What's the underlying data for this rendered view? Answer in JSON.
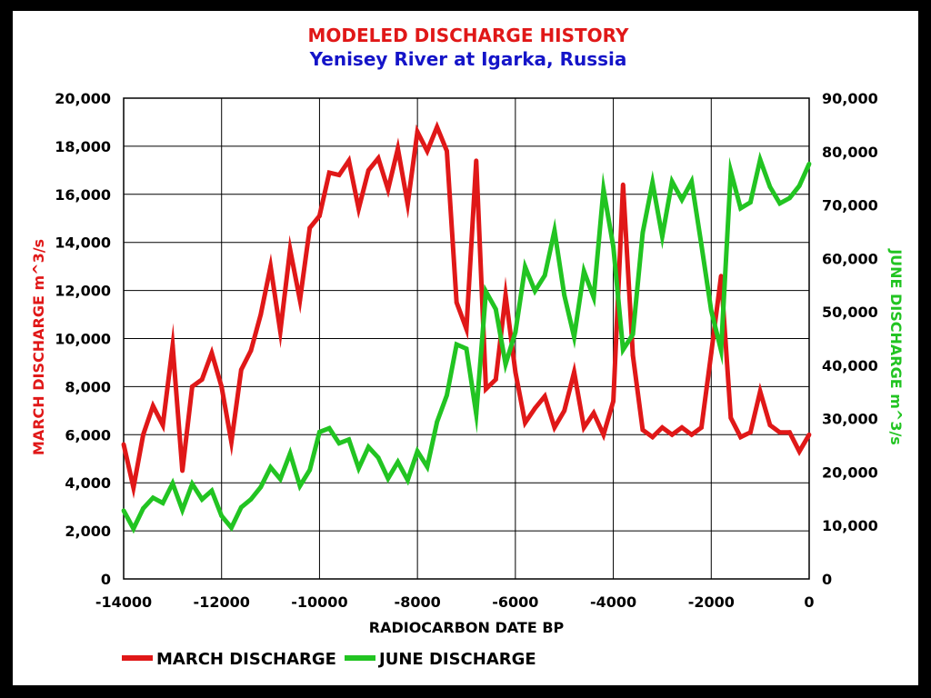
{
  "chart_data": {
    "type": "line",
    "title": "MODELED DISCHARGE HISTORY",
    "subtitle": "Yenisey River at Igarka, Russia",
    "xlabel": "RADIOCARBON DATE BP",
    "ylabel_left": "MARCH DISCHARGE m^3/s",
    "ylabel_right": "JUNE DISCHARGE m^3/s",
    "xlim": [
      -14000,
      0
    ],
    "ylim_left": [
      0,
      20000
    ],
    "ylim_right": [
      0,
      90000
    ],
    "x_ticks": [
      -14000,
      -12000,
      -10000,
      -8000,
      -6000,
      -4000,
      -2000,
      0
    ],
    "x_tick_labels": [
      "-14000",
      "-12000",
      "-10000",
      "-8000",
      "-6000",
      "-4000",
      "-2000",
      "0"
    ],
    "yleft_ticks": [
      0,
      2000,
      4000,
      6000,
      8000,
      10000,
      12000,
      14000,
      16000,
      18000,
      20000
    ],
    "yleft_tick_labels": [
      "0",
      "2,000",
      "4,000",
      "6,000",
      "8,000",
      "10,000",
      "12,000",
      "14,000",
      "16,000",
      "18,000",
      "20,000"
    ],
    "yright_ticks": [
      0,
      10000,
      20000,
      30000,
      40000,
      50000,
      60000,
      70000,
      80000,
      90000
    ],
    "yright_tick_labels": [
      "0",
      "10,000",
      "20,000",
      "30,000",
      "40,000",
      "50,000",
      "60,000",
      "70,000",
      "80,000",
      "90,000"
    ],
    "grid": true,
    "legend_position": "bottom",
    "series": [
      {
        "name": "MARCH DISCHARGE",
        "axis": "left",
        "color": "#e01818",
        "points": [
          [
            -14000,
            5600
          ],
          [
            -13800,
            3800
          ],
          [
            -13600,
            6000
          ],
          [
            -13400,
            7200
          ],
          [
            -13200,
            6400
          ],
          [
            -13000,
            9700
          ],
          [
            -12800,
            4500
          ],
          [
            -12600,
            8000
          ],
          [
            -12400,
            8300
          ],
          [
            -12200,
            9400
          ],
          [
            -12000,
            8000
          ],
          [
            -11800,
            5700
          ],
          [
            -11600,
            8700
          ],
          [
            -11400,
            9500
          ],
          [
            -11200,
            11000
          ],
          [
            -11000,
            13000
          ],
          [
            -10800,
            10300
          ],
          [
            -10600,
            13700
          ],
          [
            -10400,
            11600
          ],
          [
            -10200,
            14600
          ],
          [
            -10000,
            15100
          ],
          [
            -9800,
            16900
          ],
          [
            -9600,
            16800
          ],
          [
            -9400,
            17400
          ],
          [
            -9200,
            15400
          ],
          [
            -9000,
            17000
          ],
          [
            -8800,
            17500
          ],
          [
            -8600,
            16200
          ],
          [
            -8400,
            17900
          ],
          [
            -8200,
            15600
          ],
          [
            -8000,
            18600
          ],
          [
            -7800,
            17800
          ],
          [
            -7600,
            18800
          ],
          [
            -7400,
            17800
          ],
          [
            -7200,
            11500
          ],
          [
            -7000,
            10400
          ],
          [
            -6800,
            17400
          ],
          [
            -6600,
            7900
          ],
          [
            -6400,
            8300
          ],
          [
            -6200,
            11800
          ],
          [
            -6000,
            8600
          ],
          [
            -5800,
            6500
          ],
          [
            -5600,
            7100
          ],
          [
            -5400,
            7600
          ],
          [
            -5200,
            6300
          ],
          [
            -5000,
            7000
          ],
          [
            -4800,
            8600
          ],
          [
            -4600,
            6300
          ],
          [
            -4400,
            6900
          ],
          [
            -4200,
            6000
          ],
          [
            -4000,
            7400
          ],
          [
            -3800,
            16400
          ],
          [
            -3600,
            9300
          ],
          [
            -3400,
            6200
          ],
          [
            -3200,
            5900
          ],
          [
            -3000,
            6300
          ],
          [
            -2800,
            6000
          ],
          [
            -2600,
            6300
          ],
          [
            -2400,
            6000
          ],
          [
            -2200,
            6300
          ],
          [
            -2000,
            9400
          ],
          [
            -1800,
            12600
          ],
          [
            -1600,
            6700
          ],
          [
            -1400,
            5900
          ],
          [
            -1200,
            6100
          ],
          [
            -1000,
            7800
          ],
          [
            -800,
            6400
          ],
          [
            -600,
            6100
          ],
          [
            -400,
            6100
          ],
          [
            -200,
            5300
          ],
          [
            0,
            6000
          ]
        ]
      },
      {
        "name": "JUNE DISCHARGE",
        "axis": "right",
        "color": "#22c422",
        "points": [
          [
            -14000,
            12800
          ],
          [
            -13800,
            9400
          ],
          [
            -13600,
            13200
          ],
          [
            -13400,
            15200
          ],
          [
            -13200,
            14200
          ],
          [
            -13000,
            17900
          ],
          [
            -12800,
            12900
          ],
          [
            -12600,
            17800
          ],
          [
            -12400,
            14900
          ],
          [
            -12200,
            16500
          ],
          [
            -12000,
            11800
          ],
          [
            -11800,
            9600
          ],
          [
            -11600,
            13400
          ],
          [
            -11400,
            14900
          ],
          [
            -11200,
            17200
          ],
          [
            -11000,
            20900
          ],
          [
            -10800,
            18700
          ],
          [
            -10600,
            23500
          ],
          [
            -10400,
            17400
          ],
          [
            -10200,
            20400
          ],
          [
            -10000,
            27500
          ],
          [
            -9800,
            28200
          ],
          [
            -9600,
            25400
          ],
          [
            -9400,
            26100
          ],
          [
            -9200,
            20700
          ],
          [
            -9000,
            24700
          ],
          [
            -8800,
            22700
          ],
          [
            -8600,
            18800
          ],
          [
            -8400,
            21900
          ],
          [
            -8200,
            18500
          ],
          [
            -8000,
            23900
          ],
          [
            -7800,
            21000
          ],
          [
            -7600,
            29400
          ],
          [
            -7400,
            34400
          ],
          [
            -7200,
            43900
          ],
          [
            -7000,
            43100
          ],
          [
            -6800,
            30900
          ],
          [
            -6600,
            53800
          ],
          [
            -6400,
            50500
          ],
          [
            -6200,
            40200
          ],
          [
            -6000,
            46200
          ],
          [
            -5800,
            58400
          ],
          [
            -5600,
            53900
          ],
          [
            -5400,
            56800
          ],
          [
            -5200,
            65200
          ],
          [
            -5000,
            53100
          ],
          [
            -4800,
            45300
          ],
          [
            -4600,
            57600
          ],
          [
            -4400,
            52700
          ],
          [
            -4200,
            72900
          ],
          [
            -4000,
            62200
          ],
          [
            -3800,
            42900
          ],
          [
            -3600,
            45800
          ],
          [
            -3400,
            64800
          ],
          [
            -3200,
            74200
          ],
          [
            -3000,
            64100
          ],
          [
            -2800,
            74400
          ],
          [
            -2600,
            71000
          ],
          [
            -2400,
            74400
          ],
          [
            -2200,
            62500
          ],
          [
            -2000,
            50200
          ],
          [
            -1800,
            42800
          ],
          [
            -1600,
            76300
          ],
          [
            -1400,
            69400
          ],
          [
            -1200,
            70500
          ],
          [
            -1000,
            78500
          ],
          [
            -800,
            73400
          ],
          [
            -600,
            70300
          ],
          [
            -400,
            71300
          ],
          [
            -200,
            73600
          ],
          [
            0,
            77700
          ]
        ]
      }
    ]
  }
}
